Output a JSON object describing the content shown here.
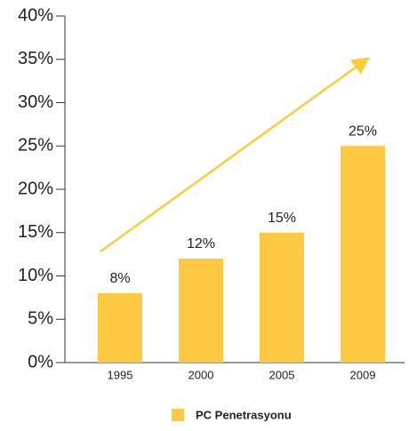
{
  "chart_data": {
    "type": "bar",
    "categories": [
      "1995",
      "2000",
      "2005",
      "2009"
    ],
    "series": [
      {
        "name": "PC Penetrasyonu",
        "color": "#fdc943",
        "values": [
          8,
          12,
          15,
          25
        ],
        "value_labels": [
          "8%",
          "12%",
          "15%",
          "25%"
        ]
      }
    ],
    "ylim": [
      0,
      40
    ],
    "yticks": [
      {
        "value": 0,
        "label": "0%"
      },
      {
        "value": 5,
        "label": "5%"
      },
      {
        "value": 10,
        "label": "10%"
      },
      {
        "value": 15,
        "label": "15%"
      },
      {
        "value": 20,
        "label": "20%"
      },
      {
        "value": 25,
        "label": "25%"
      },
      {
        "value": 30,
        "label": "30%"
      },
      {
        "value": 35,
        "label": "35%"
      },
      {
        "value": 40,
        "label": "40%"
      }
    ],
    "legend": "bottom"
  }
}
